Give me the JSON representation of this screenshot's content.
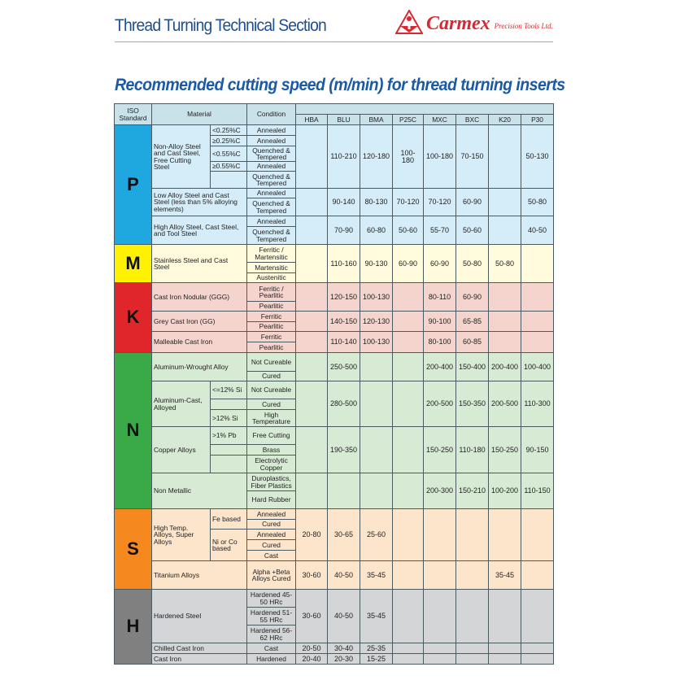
{
  "header": {
    "section_title": "Thread Turning Technical Section",
    "brand": "Carmex",
    "brand_sub": "Precision Tools Ltd.",
    "brand_color": "#d9282f"
  },
  "title": "Recommended cutting speed (m/min) for thread turning inserts",
  "table": {
    "headers": {
      "iso": "ISO Standard",
      "material": "Material",
      "condition": "Condition"
    },
    "grades": [
      "HBA",
      "BLU",
      "BMA",
      "P25C",
      "MXC",
      "BXC",
      "K20",
      "P30"
    ],
    "groups": [
      {
        "iso": "P",
        "iso_color": "#1fa8e0",
        "bg": "#d5edf9",
        "materials": [
          {
            "name": "Non-Alloy Steel and Cast Steel, Free Cutting Steel",
            "subs": [
              {
                "label": "<0.25%C",
                "conditions": [
                  "Annealed"
                ]
              },
              {
                "label": "≥0.25%C",
                "conditions": [
                  "Annealed"
                ]
              },
              {
                "label": "<0.55%C",
                "conditions": [
                  "Quenched & Tempered"
                ]
              },
              {
                "label": "≥0.55%C",
                "conditions": [
                  "Annealed"
                ]
              },
              {
                "label": "",
                "conditions": [
                  "Quenched & Tempered"
                ]
              }
            ],
            "values": [
              "",
              "110-210",
              "120-180",
              "100-180",
              "100-180",
              "70-150",
              "",
              "50-130"
            ]
          },
          {
            "name": "Low Alloy Steel and Cast Steel (less than 5% alloying elements)",
            "conditions": [
              "Annealed",
              "Quenched & Tempered"
            ],
            "values": [
              "",
              "90-140",
              "80-130",
              "70-120",
              "70-120",
              "60-90",
              "",
              "50-80"
            ]
          },
          {
            "name": "High Alloy Steel, Cast Steel, and Tool Steel",
            "conditions": [
              "Annealed",
              "Quenched & Tempered"
            ],
            "values": [
              "",
              "70-90",
              "60-80",
              "50-60",
              "55-70",
              "50-60",
              "",
              "40-50"
            ]
          }
        ]
      },
      {
        "iso": "M",
        "iso_color": "#fff200",
        "bg": "#fffbdc",
        "materials": [
          {
            "name": "Stainless Steel and Cast Steel",
            "conditions": [
              "Ferritic / Martensitic",
              "Martensitic",
              "Austenitic"
            ],
            "values": [
              "",
              "110-160",
              "90-130",
              "60-90",
              "60-90",
              "50-80",
              "50-80",
              ""
            ]
          }
        ]
      },
      {
        "iso": "K",
        "iso_color": "#e0262b",
        "bg": "#f5d4cd",
        "materials": [
          {
            "name": "Cast Iron Nodular (GGG)",
            "conditions": [
              "Ferritic / Pearlitic",
              "Pearlitic"
            ],
            "values": [
              "",
              "120-150",
              "100-130",
              "",
              "80-110",
              "60-90",
              "",
              ""
            ]
          },
          {
            "name": "Grey Cast Iron (GG)",
            "conditions": [
              "Ferritic",
              "Pearlitic"
            ],
            "values": [
              "",
              "140-150",
              "120-130",
              "",
              "90-100",
              "65-85",
              "",
              ""
            ]
          },
          {
            "name": "Malleable Cast Iron",
            "conditions": [
              "Ferritic",
              "Pearlitic"
            ],
            "values": [
              "",
              "110-140",
              "100-130",
              "",
              "80-100",
              "60-85",
              "",
              ""
            ]
          }
        ]
      },
      {
        "iso": "N",
        "iso_color": "#3aaa48",
        "bg": "#d7ebd4",
        "materials": [
          {
            "name": "Aluminum-Wrought Alloy",
            "conditions": [
              "Not Cureable",
              "Cured"
            ],
            "values": [
              "",
              "250-500",
              "",
              "",
              "200-400",
              "150-400",
              "200-400",
              "100-400"
            ]
          },
          {
            "name": "Aluminum-Cast, Alloyed",
            "subs": [
              {
                "label": "<=12% Si",
                "conditions": [
                  "Not Cureable"
                ]
              },
              {
                "label": "",
                "conditions": [
                  "Cured"
                ]
              },
              {
                "label": ">12% Si",
                "conditions": [
                  "High Temperature"
                ]
              }
            ],
            "values": [
              "",
              "280-500",
              "",
              "",
              "200-500",
              "150-350",
              "200-500",
              "110-300"
            ]
          },
          {
            "name": "Copper Alloys",
            "subs": [
              {
                "label": ">1% Pb",
                "conditions": [
                  "Free Cutting"
                ]
              },
              {
                "label": "",
                "conditions": [
                  "Brass"
                ]
              },
              {
                "label": "",
                "conditions": [
                  "Electrolytic Copper"
                ]
              }
            ],
            "values": [
              "",
              "190-350",
              "",
              "",
              "150-250",
              "110-180",
              "150-250",
              "90-150"
            ]
          },
          {
            "name": "Non Metallic",
            "conditions": [
              "Duroplastics, Fiber Plastics",
              "Hard Rubber"
            ],
            "values": [
              "",
              "",
              "",
              "",
              "200-300",
              "150-210",
              "100-200",
              "110-150"
            ]
          }
        ]
      },
      {
        "iso": "S",
        "iso_color": "#f5891f",
        "bg": "#fde5cc",
        "materials": [
          {
            "name": "High Temp. Alloys, Super Alloys",
            "subs": [
              {
                "label": "Fe based",
                "conditions": [
                  "Annealed",
                  "Cured"
                ]
              },
              {
                "label": "Ni or Co based",
                "conditions": [
                  "Annealed",
                  "Cured",
                  "Cast"
                ]
              }
            ],
            "values": [
              "20-80",
              "30-65",
              "25-60",
              "",
              "",
              "",
              "",
              ""
            ]
          },
          {
            "name": "Titanium Alloys",
            "conditions": [
              "Alpha +Beta Alloys Cured"
            ],
            "values": [
              "30-60",
              "40-50",
              "35-45",
              "",
              "",
              "",
              "35-45",
              ""
            ]
          }
        ]
      },
      {
        "iso": "H",
        "iso_color": "#808080",
        "bg": "#d4d5d7",
        "materials": [
          {
            "name": "Hardened Steel",
            "conditions": [
              "Hardened 45-50 HRc",
              "Hardened 51-55 HRc",
              "Hardened 56-62 HRc"
            ],
            "values": [
              "30-60",
              "40-50",
              "35-45",
              "",
              "",
              "",
              "",
              ""
            ]
          },
          {
            "name": "Chilled Cast Iron",
            "conditions": [
              "Cast"
            ],
            "values": [
              "20-50",
              "30-40",
              "25-35",
              "",
              "",
              "",
              "",
              ""
            ]
          },
          {
            "name": "Cast Iron",
            "conditions": [
              "Hardened"
            ],
            "values": [
              "20-40",
              "20-30",
              "15-25",
              "",
              "",
              "",
              "",
              ""
            ]
          }
        ]
      }
    ]
  }
}
